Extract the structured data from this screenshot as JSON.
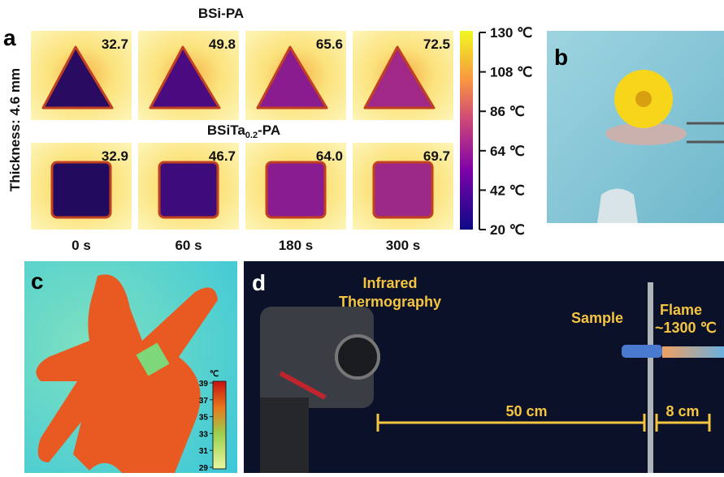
{
  "panel_a": {
    "label": "a",
    "title_top": "BSi-PA",
    "title_bottom": {
      "main": "BSiTa",
      "sub": "0.2",
      "suffix": "-PA"
    },
    "side_label": "Thickness: 4.6 mm",
    "top_temps": [
      "32.7",
      "49.8",
      "65.6",
      "72.5"
    ],
    "bottom_temps": [
      "32.9",
      "46.7",
      "64.0",
      "69.7"
    ],
    "times": [
      "0 s",
      "60 s",
      "180 s",
      "300 s"
    ],
    "colorbar_ticks": [
      "130 ℃",
      "108 ℃",
      "86 ℃",
      "64 ℃",
      "42 ℃",
      "20 ℃"
    ]
  },
  "panel_b": {
    "label": "b"
  },
  "panel_c": {
    "label": "c",
    "unit": "℃",
    "ticks": [
      "39",
      "37",
      "35",
      "33",
      "31",
      "29"
    ]
  },
  "panel_d": {
    "label": "d",
    "camera_label": [
      "Infrared",
      "Thermography"
    ],
    "sample_label": "Sample",
    "flame_label": [
      "Flame",
      "~1300 ℃"
    ],
    "distance_1": "50 cm",
    "distance_2": "8 cm"
  }
}
